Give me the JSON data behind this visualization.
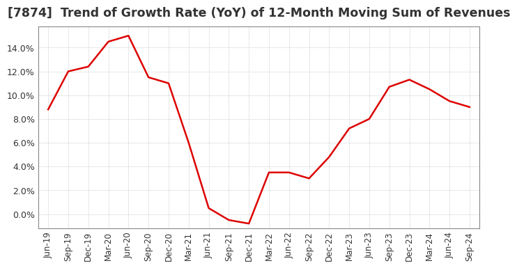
{
  "title": "[7874]  Trend of Growth Rate (YoY) of 12-Month Moving Sum of Revenues",
  "title_fontsize": 12.5,
  "line_color": "#dd0000",
  "background_color": "#ffffff",
  "plot_bg_color": "#ffffff",
  "grid_color": "#aaaaaa",
  "ylim": [
    -0.012,
    0.158
  ],
  "yticks": [
    0.0,
    0.02,
    0.04,
    0.06,
    0.08,
    0.1,
    0.12,
    0.14
  ],
  "x_labels": [
    "Jun-19",
    "Sep-19",
    "Dec-19",
    "Mar-20",
    "Jun-20",
    "Sep-20",
    "Dec-20",
    "Mar-21",
    "Jun-21",
    "Sep-21",
    "Dec-21",
    "Mar-22",
    "Jun-22",
    "Sep-22",
    "Dec-22",
    "Mar-23",
    "Jun-23",
    "Sep-23",
    "Dec-23",
    "Mar-24",
    "Jun-24",
    "Sep-24"
  ],
  "y_values": [
    0.088,
    0.12,
    0.124,
    0.145,
    0.15,
    0.115,
    0.11,
    0.06,
    0.005,
    -0.005,
    -0.008,
    0.035,
    0.035,
    0.03,
    0.048,
    0.072,
    0.08,
    0.107,
    0.113,
    0.105,
    0.095,
    0.09
  ]
}
